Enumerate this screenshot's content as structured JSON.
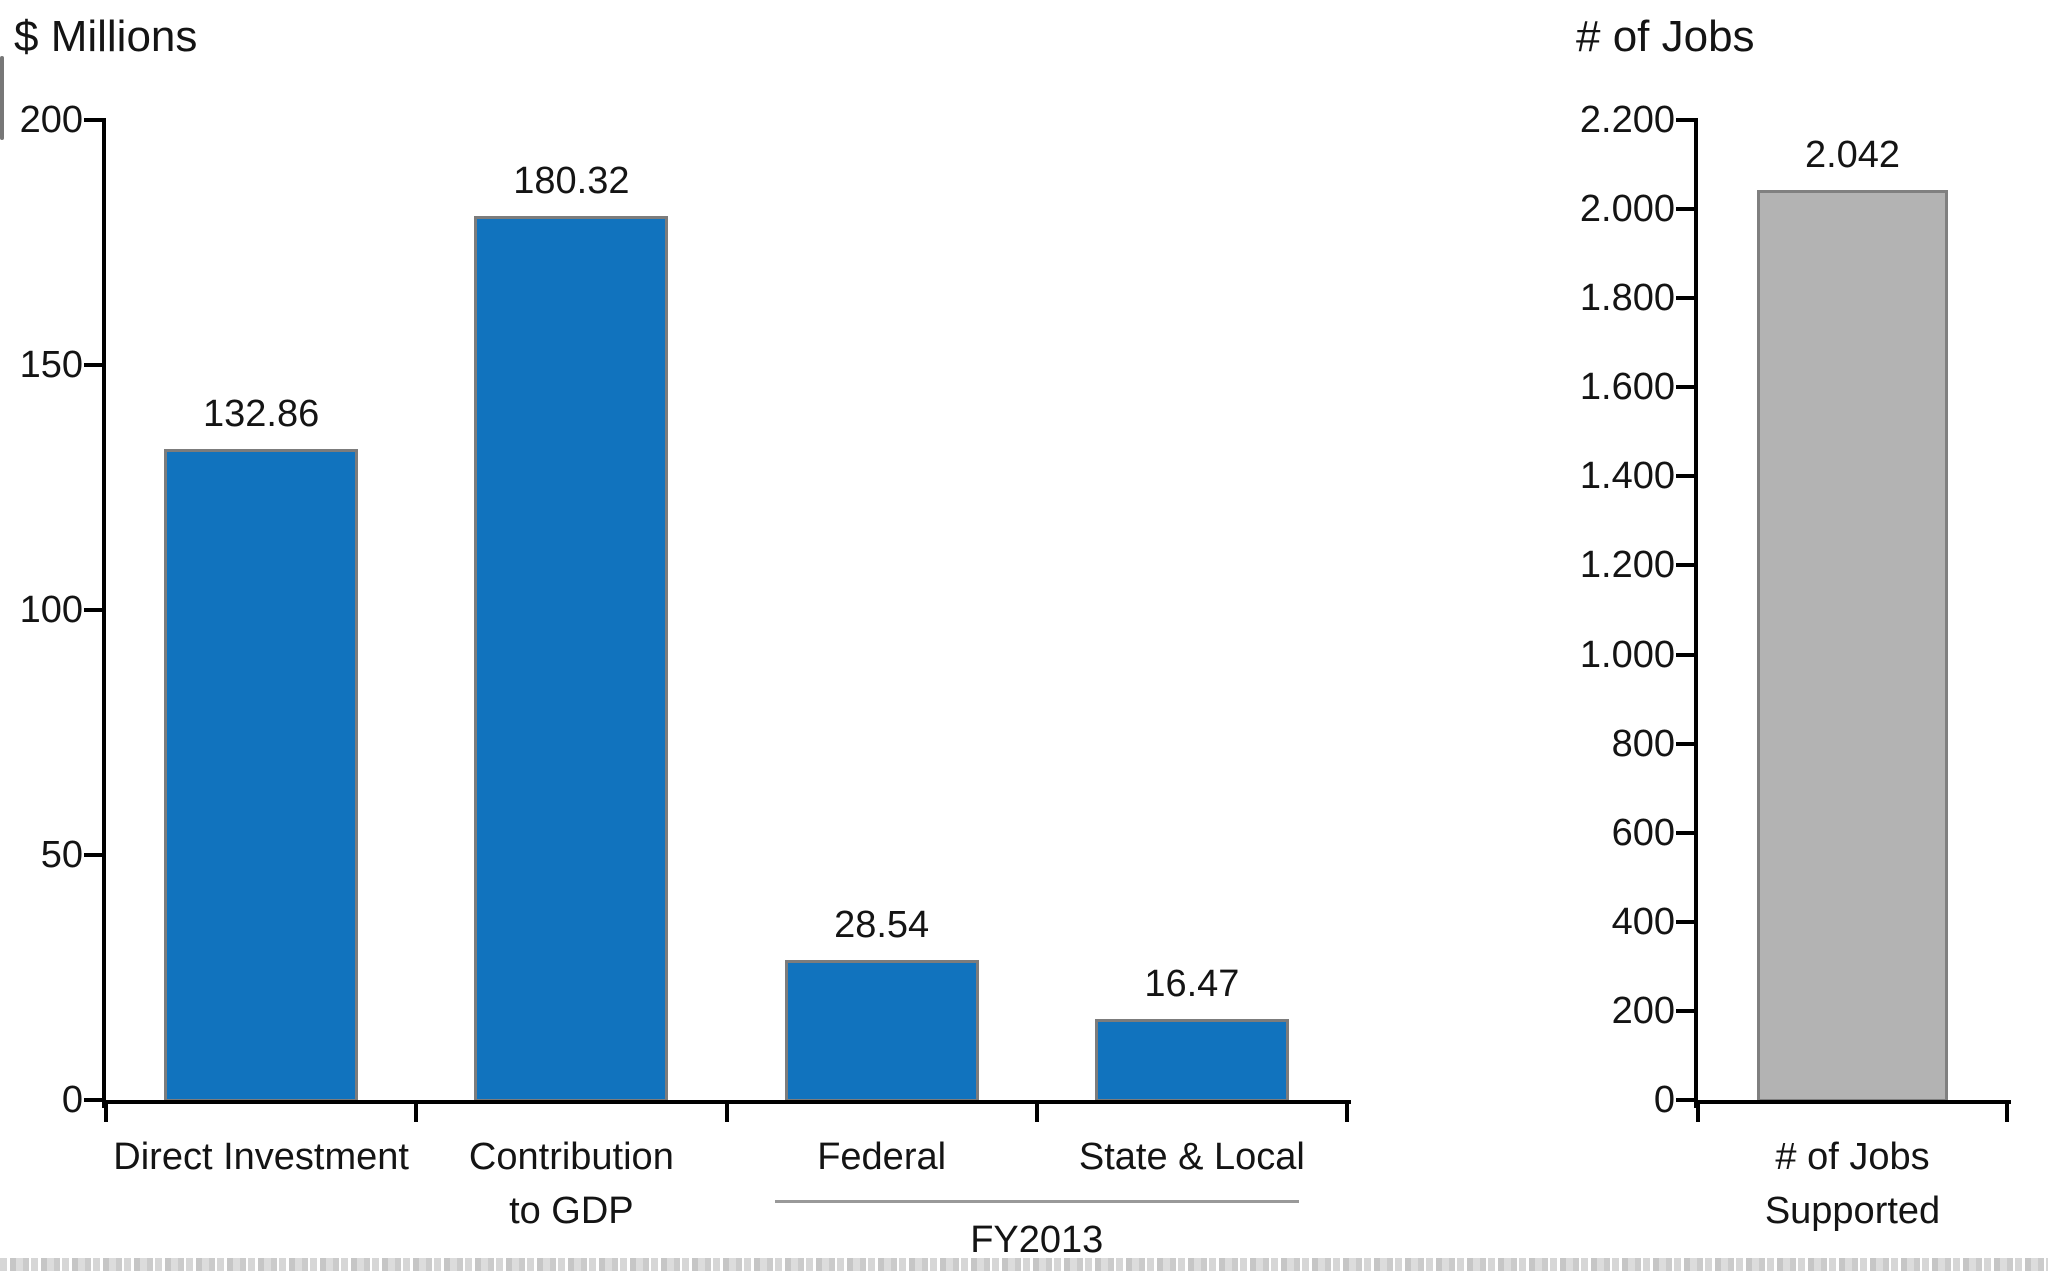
{
  "figure": {
    "background": "#ffffff",
    "text_color": "#141414"
  },
  "chart_data": [
    {
      "type": "bar",
      "title": "$ Millions",
      "categories": [
        "Direct Investment",
        "Contribution\nto GDP",
        "Federal",
        "State & Local"
      ],
      "values": [
        132.86,
        180.32,
        28.54,
        16.47
      ],
      "value_labels": [
        "132.86",
        "180.32",
        "28.54",
        "16.47"
      ],
      "ylim": [
        0,
        200
      ],
      "yticks": [
        0,
        50,
        100,
        150,
        200
      ],
      "ytick_labels": [
        "0",
        "50",
        "100",
        "150",
        "200"
      ],
      "grid": false,
      "legend": null,
      "bar_color": "#1173BE",
      "bar_border_color": "#7C7C7C",
      "axis_color": "#000000",
      "group_annotation": {
        "label": "FY2013",
        "from_index": 2,
        "to_index": 3,
        "line_color": "#999999"
      }
    },
    {
      "type": "bar",
      "title": "# of Jobs",
      "categories": [
        "# of Jobs\nSupported"
      ],
      "values": [
        2042
      ],
      "value_labels": [
        "2.042"
      ],
      "ylim": [
        0,
        2200
      ],
      "yticks": [
        0,
        200,
        400,
        600,
        800,
        1000,
        1200,
        1400,
        1600,
        1800,
        2000,
        2200
      ],
      "ytick_labels": [
        "0",
        "200",
        "400",
        "600",
        "800",
        "1.000",
        "1.200",
        "1.400",
        "1.600",
        "1.800",
        "2.000",
        "2.200"
      ],
      "grid": false,
      "legend": null,
      "bar_color": "#B3B3B3",
      "bar_border_color": "#808080",
      "axis_color": "#000000",
      "group_annotation": null
    }
  ]
}
